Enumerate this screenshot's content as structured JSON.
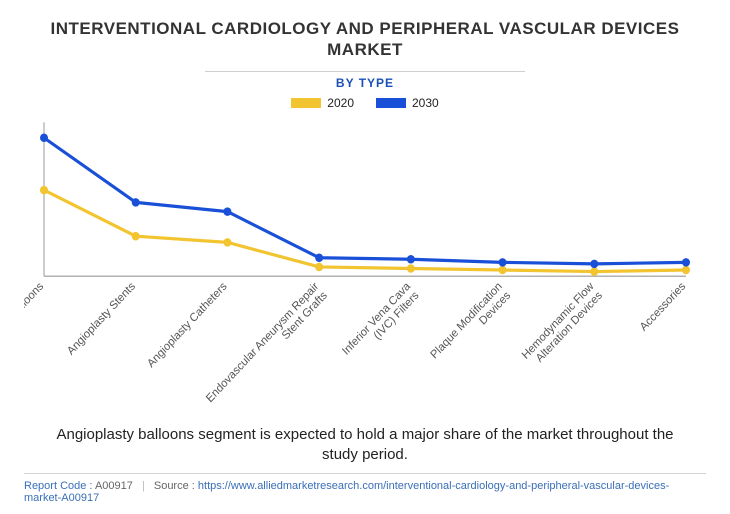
{
  "title": "INTERVENTIONAL CARDIOLOGY AND PERIPHERAL VASCULAR DEVICES MARKET",
  "title_fontsize": 17,
  "title_color": "#333333",
  "subtitle": "BY TYPE",
  "subtitle_fontsize": 12,
  "subtitle_color": "#1a50b8",
  "legend": {
    "items": [
      {
        "label": "2020",
        "color": "#f2c430"
      },
      {
        "label": "2030",
        "color": "#1a50d8"
      }
    ]
  },
  "chart": {
    "type": "line",
    "background_color": "#ffffff",
    "axis_color": "#999999",
    "categories": [
      "Angioplasty Balloons",
      "Angioplasty Stents",
      "Angioplasty Catheters",
      "Endovascular Aneurysm Repair Stent Grafts",
      "Inferior Vena Cava (IVC) Filters",
      "Plaque Modification Devices",
      "Hemodynamic Flow Alteration Devices",
      "Accessories"
    ],
    "ylim": [
      0,
      100
    ],
    "series": [
      {
        "name": "2020",
        "color": "#f2c430",
        "line_width": 3,
        "marker": "circle",
        "marker_size": 4,
        "values": [
          56,
          26,
          22,
          6,
          5,
          4,
          3,
          4
        ]
      },
      {
        "name": "2030",
        "color": "#1a50d8",
        "line_width": 3,
        "marker": "circle",
        "marker_size": 4,
        "values": [
          90,
          48,
          42,
          12,
          11,
          9,
          8,
          9
        ]
      }
    ],
    "xlabel_fontsize": 11,
    "xlabel_color": "#555555",
    "xlabel_rotation": -45
  },
  "caption": "Angioplasty balloons segment is expected to hold a major share of the market throughout the study period.",
  "footer": {
    "code_label": "Report Code :",
    "code": "A00917",
    "source_label": "Source :",
    "source_url": "https://www.alliedmarketresearch.com/interventional-cardiology-and-peripheral-vascular-devices-market-A00917"
  }
}
